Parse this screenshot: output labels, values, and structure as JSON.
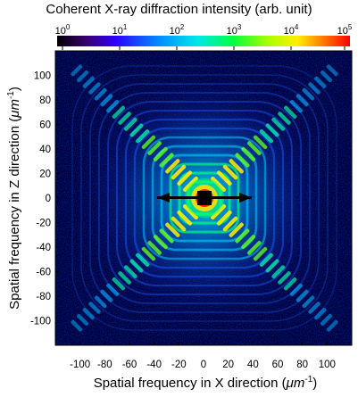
{
  "title": "Coherent X-ray diffraction intensity (arb. unit)",
  "colorbar": {
    "tick_labels": [
      {
        "base": "10",
        "exp": "0"
      },
      {
        "base": "10",
        "exp": "1"
      },
      {
        "base": "10",
        "exp": "2"
      },
      {
        "base": "10",
        "exp": "3"
      },
      {
        "base": "10",
        "exp": "4"
      },
      {
        "base": "10",
        "exp": "5"
      }
    ],
    "colors": [
      "#000000",
      "#4b0082",
      "#0000ff",
      "#00aaff",
      "#00ffcc",
      "#00ff00",
      "#ffff00",
      "#ff8800",
      "#ff0000"
    ]
  },
  "axes": {
    "xlabel_main": "Spatial frequency in X direction (",
    "xlabel_unit": "μm",
    "xlabel_exp": "-1",
    "xlabel_end": ")",
    "ylabel_main": "Spatial frequency in Z direction (",
    "ylabel_unit": "μm",
    "ylabel_exp": "-1",
    "ylabel_end": ")",
    "range": [
      -120,
      120
    ],
    "x_ticks": [
      "-100",
      "-80",
      "-60",
      "-40",
      "-20",
      "0",
      "20",
      "40",
      "60",
      "80",
      "100"
    ],
    "y_ticks": [
      "100",
      "80",
      "60",
      "40",
      "20",
      "0",
      "-20",
      "-40",
      "-60",
      "-80",
      "-100"
    ]
  }
}
